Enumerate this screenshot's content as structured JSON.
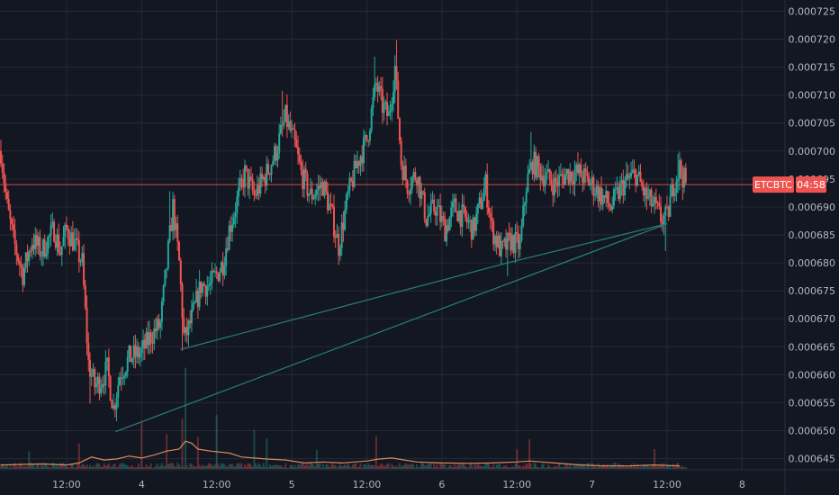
{
  "chart_data": {
    "type": "candlestick",
    "symbol": "ETCBTC",
    "last_price": 0.000694,
    "countdown": "04:58",
    "price_label_text": "ETCBTC",
    "ylim": [
      0.000643,
      0.000727
    ],
    "y_ticks": [
      "0.000645",
      "0.000650",
      "0.000655",
      "0.000660",
      "0.000665",
      "0.000670",
      "0.000675",
      "0.000680",
      "0.000685",
      "0.000690",
      "0.000695",
      "0.000700",
      "0.000705",
      "0.000710",
      "0.000715",
      "0.000720",
      "0.000725"
    ],
    "x_ticks": [
      {
        "label": "12:00",
        "t": 12
      },
      {
        "label": "4",
        "t": 24
      },
      {
        "label": "12:00",
        "t": 36
      },
      {
        "label": "5",
        "t": 48
      },
      {
        "label": "12:00",
        "t": 60
      },
      {
        "label": "6",
        "t": 72
      },
      {
        "label": "12:00",
        "t": 84
      },
      {
        "label": "7",
        "t": 96
      },
      {
        "label": "12:00",
        "t": 108
      },
      {
        "label": "8",
        "t": 120
      }
    ],
    "xlim": [
      1.5,
      127
    ],
    "path": [
      [
        1.5,
        0.0007
      ],
      [
        2.5,
        0.00069
      ],
      [
        3.5,
        0.000684
      ],
      [
        5,
        0.000678
      ],
      [
        6.5,
        0.000684
      ],
      [
        8,
        0.000682
      ],
      [
        10,
        0.000686
      ],
      [
        11,
        0.000682
      ],
      [
        12,
        0.000686
      ],
      [
        13,
        0.000684
      ],
      [
        14.5,
        0.00068
      ],
      [
        15.5,
        0.000662
      ],
      [
        16.5,
        0.000658
      ],
      [
        17.5,
        0.000659
      ],
      [
        18.5,
        0.000661
      ],
      [
        19.5,
        0.000654
      ],
      [
        20.5,
        0.00066
      ],
      [
        22,
        0.000663
      ],
      [
        24,
        0.000664
      ],
      [
        25.5,
        0.000667
      ],
      [
        27,
        0.000669
      ],
      [
        29,
        0.00069
      ],
      [
        30,
        0.00068
      ],
      [
        30.8,
        0.000666
      ],
      [
        32,
        0.00067
      ],
      [
        33.5,
        0.000676
      ],
      [
        35,
        0.000676
      ],
      [
        37,
        0.00068
      ],
      [
        38,
        0.000686
      ],
      [
        39,
        0.00069
      ],
      [
        40.5,
        0.000696
      ],
      [
        42,
        0.000692
      ],
      [
        44,
        0.000696
      ],
      [
        45.5,
        0.0007
      ],
      [
        47,
        0.000706
      ],
      [
        48.5,
        0.000701
      ],
      [
        49.5,
        0.000696
      ],
      [
        51,
        0.000692
      ],
      [
        53,
        0.000694
      ],
      [
        54.5,
        0.000688
      ],
      [
        55.5,
        0.000683
      ],
      [
        57,
        0.000692
      ],
      [
        58.5,
        0.000698
      ],
      [
        60,
        0.000702
      ],
      [
        61.5,
        0.000712
      ],
      [
        62.5,
        0.000708
      ],
      [
        63.5,
        0.000706
      ],
      [
        64.5,
        0.000715
      ],
      [
        65.5,
        0.000698
      ],
      [
        66.5,
        0.000694
      ],
      [
        68,
        0.000696
      ],
      [
        69.5,
        0.000688
      ],
      [
        71,
        0.00069
      ],
      [
        72.5,
        0.000686
      ],
      [
        74,
        0.00069
      ],
      [
        75.5,
        0.000688
      ],
      [
        77,
        0.000686
      ],
      [
        79,
        0.000694
      ],
      [
        80,
        0.000686
      ],
      [
        81.5,
        0.000682
      ],
      [
        83,
        0.000684
      ],
      [
        84.5,
        0.000683
      ],
      [
        85.5,
        0.000694
      ],
      [
        86.5,
        0.000698
      ],
      [
        88,
        0.000696
      ],
      [
        90,
        0.000694
      ],
      [
        92,
        0.000696
      ],
      [
        94,
        0.000696
      ],
      [
        96,
        0.000694
      ],
      [
        97.5,
        0.000692
      ],
      [
        99,
        0.00069
      ],
      [
        101,
        0.000694
      ],
      [
        103,
        0.000696
      ],
      [
        104.5,
        0.000692
      ],
      [
        106,
        0.00069
      ],
      [
        107,
        0.000688
      ],
      [
        108,
        0.000688
      ],
      [
        109,
        0.000694
      ],
      [
        110,
        0.000697
      ],
      [
        111,
        0.000694
      ]
    ],
    "spikes": [
      {
        "t": 0.6,
        "dir": "up"
      },
      {
        "t": 15.8,
        "dir": "down"
      },
      {
        "t": 28.6,
        "dir": "up"
      },
      {
        "t": 30.6,
        "dir": "down"
      },
      {
        "t": 46.5,
        "dir": "up"
      },
      {
        "t": 61.2,
        "dir": "up"
      },
      {
        "t": 64.8,
        "dir": "up"
      },
      {
        "t": 82.5,
        "dir": "down"
      },
      {
        "t": 86.3,
        "dir": "up"
      },
      {
        "t": 107.8,
        "dir": "down"
      },
      {
        "t": 109.7,
        "dir": "up"
      }
    ],
    "trendlines": [
      {
        "from": [
          19.8,
          0.0006498
        ],
        "to": [
          108,
          0.000687
        ]
      },
      {
        "from": [
          30.2,
          0.0006645
        ],
        "to": [
          82.5,
          0.00068
        ]
      },
      {
        "from": [
          82.5,
          0.00068
        ],
        "to": [
          108,
          0.000687
        ]
      }
    ],
    "volume_profile": [
      [
        1.5,
        0.2
      ],
      [
        8,
        0.25
      ],
      [
        12,
        0.2
      ],
      [
        14,
        0.3
      ],
      [
        16,
        0.6
      ],
      [
        18,
        0.45
      ],
      [
        20,
        0.5
      ],
      [
        22,
        0.65
      ],
      [
        24,
        0.55
      ],
      [
        26,
        0.7
      ],
      [
        28,
        0.9
      ],
      [
        30,
        1.0
      ],
      [
        31,
        1.4
      ],
      [
        32,
        1.3
      ],
      [
        33,
        1.0
      ],
      [
        35,
        0.9
      ],
      [
        38,
        0.8
      ],
      [
        40,
        0.6
      ],
      [
        44,
        0.5
      ],
      [
        47,
        0.45
      ],
      [
        50,
        0.3
      ],
      [
        53,
        0.35
      ],
      [
        56,
        0.3
      ],
      [
        60,
        0.4
      ],
      [
        62,
        0.5
      ],
      [
        64,
        0.55
      ],
      [
        66,
        0.45
      ],
      [
        68,
        0.35
      ],
      [
        72,
        0.3
      ],
      [
        76,
        0.28
      ],
      [
        80,
        0.3
      ],
      [
        84,
        0.35
      ],
      [
        86,
        0.4
      ],
      [
        88,
        0.35
      ],
      [
        90,
        0.3
      ],
      [
        94,
        0.2
      ],
      [
        98,
        0.15
      ],
      [
        102,
        0.15
      ],
      [
        106,
        0.2
      ],
      [
        110,
        0.15
      ]
    ],
    "volume_spikes": [
      [
        31,
        8
      ],
      [
        30.5,
        4
      ],
      [
        24,
        3
      ],
      [
        36,
        4
      ],
      [
        42,
        2.5
      ],
      [
        61.5,
        2.5
      ],
      [
        44,
        1.8
      ],
      [
        52,
        1.5
      ],
      [
        86,
        1.8
      ],
      [
        106,
        1.5
      ],
      [
        84,
        1.4
      ],
      [
        14,
        2
      ],
      [
        6,
        1.2
      ],
      [
        28,
        2.2
      ],
      [
        33,
        2
      ]
    ],
    "colors": {
      "background": "#131722",
      "grid": "#252a36",
      "up": "#26a69a",
      "down": "#ef5350",
      "trendline": "#2a7f7a",
      "volume_line": "#d98a5a",
      "price_line": "#ef5350",
      "axis_text": "#b2b5be",
      "label_bg": "#ef5350",
      "label_text": "#ffffff"
    }
  }
}
